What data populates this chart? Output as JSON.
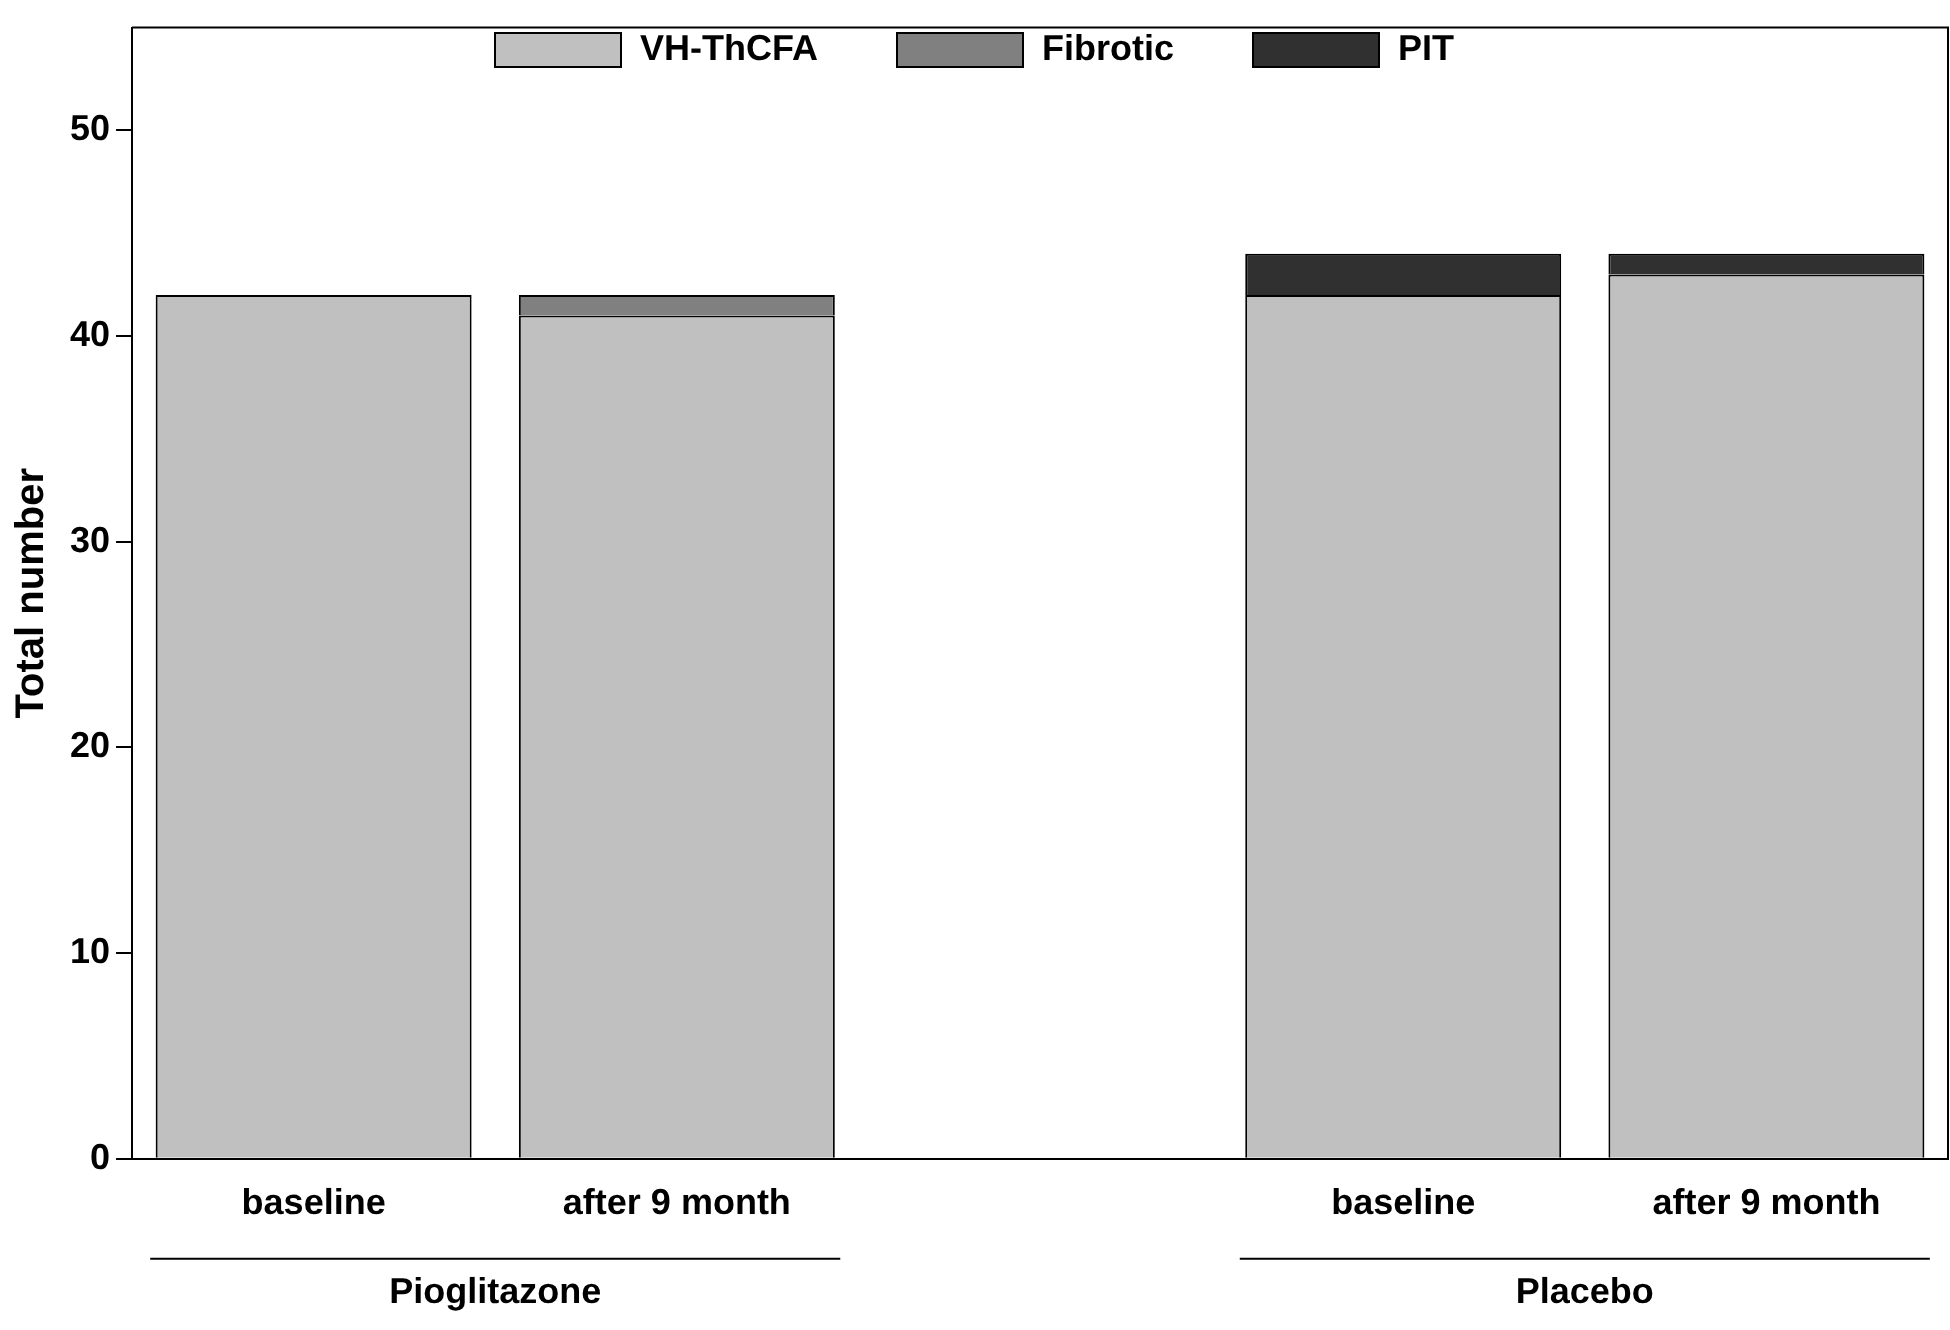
{
  "chart_data": {
    "type": "bar",
    "stacked": true,
    "ylabel": "Total number",
    "categories": [
      "baseline",
      "after 9 month",
      null,
      "baseline",
      "after 9 month"
    ],
    "series": [
      {
        "name": "VH-ThCFA",
        "color": "#c0c0c0",
        "values": [
          42,
          41,
          null,
          42,
          43
        ]
      },
      {
        "name": "Fibrotic",
        "color": "#808080",
        "values": [
          0,
          1,
          null,
          0,
          0
        ]
      },
      {
        "name": "PIT",
        "color": "#303030",
        "values": [
          0,
          0,
          null,
          2,
          1
        ]
      }
    ],
    "ylim": [
      0,
      55
    ],
    "yticks": [
      0,
      10,
      20,
      30,
      40,
      50
    ],
    "grid": false,
    "legend": "top",
    "annotations": [
      "Pioglitazone",
      "Placebo"
    ]
  }
}
